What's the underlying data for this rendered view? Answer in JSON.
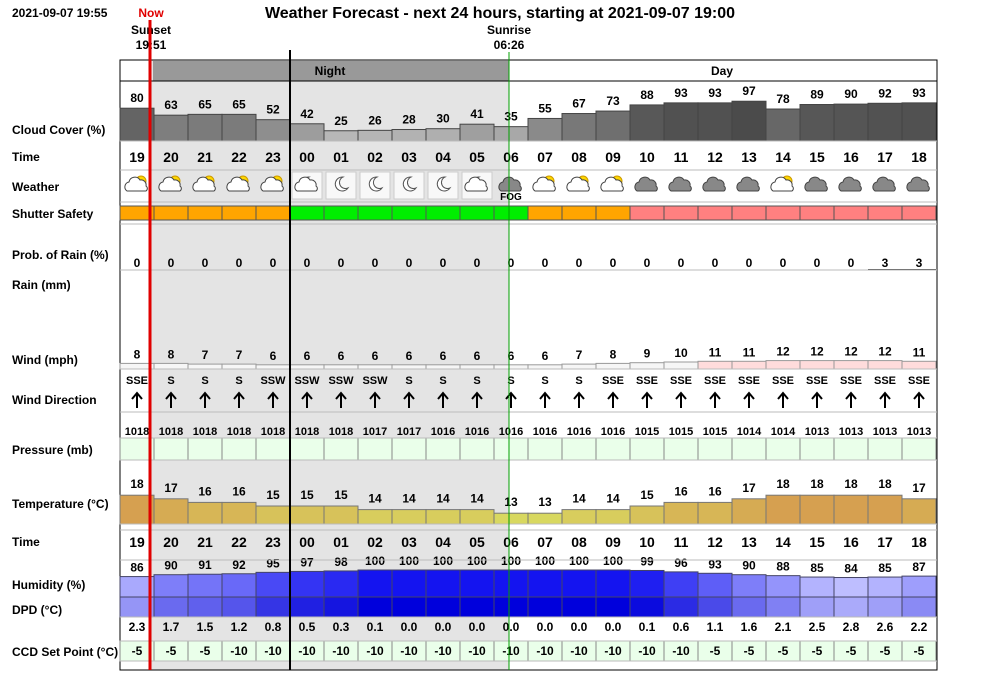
{
  "header": {
    "timestamp": "2021-09-07 19:55",
    "now": "Now",
    "title": "Weather Forecast - next 24 hours, starting at 2021-09-07 19:00",
    "sunset_label": "Sunset",
    "sunset_time": "19:51",
    "sunrise_label": "Sunrise",
    "sunrise_time": "06:26",
    "night": "Night",
    "day": "Day"
  },
  "rows": {
    "cloud_cover": "Cloud Cover (%)",
    "time": "Time",
    "weather": "Weather",
    "shutter_safety": "Shutter Safety",
    "prob_rain": "Prob. of Rain (%)",
    "rain": "Rain (mm)",
    "wind": "Wind (mph)",
    "wind_direction": "Wind Direction",
    "pressure": "Pressure (mb)",
    "temperature": "Temperature (°C)",
    "time2": "Time",
    "humidity": "Humidity (%)",
    "dpd": "DPD (°C)",
    "ccd": "CCD Set Point (°C)"
  },
  "forecast": {
    "time": [
      "19",
      "20",
      "21",
      "22",
      "23",
      "00",
      "01",
      "02",
      "03",
      "04",
      "05",
      "06",
      "07",
      "08",
      "09",
      "10",
      "11",
      "12",
      "13",
      "14",
      "15",
      "16",
      "17",
      "18"
    ],
    "cloud_cover": [
      80,
      63,
      65,
      65,
      52,
      42,
      25,
      26,
      28,
      30,
      41,
      35,
      55,
      67,
      73,
      88,
      93,
      93,
      97,
      78,
      89,
      90,
      92,
      93
    ],
    "weather_labels": [
      null,
      null,
      null,
      null,
      null,
      null,
      null,
      null,
      null,
      null,
      null,
      "FOG",
      null,
      null,
      null,
      null,
      null,
      null,
      null,
      null,
      null,
      null,
      null,
      null
    ],
    "shutter_colors": [
      "#ffa500",
      "#ffa500",
      "#ffa500",
      "#ffa500",
      "#ffa500",
      "#00ee00",
      "#00ee00",
      "#00ee00",
      "#00ee00",
      "#00ee00",
      "#00ee00",
      "#00ee00",
      "#ffa500",
      "#ffa500",
      "#ffa500",
      "#ff8080",
      "#ff8080",
      "#ff8080",
      "#ff8080",
      "#ff8080",
      "#ff8080",
      "#ff8080",
      "#ff8080",
      "#ff8080"
    ],
    "prob_rain": [
      0,
      0,
      0,
      0,
      0,
      0,
      0,
      0,
      0,
      0,
      0,
      0,
      0,
      0,
      0,
      0,
      0,
      0,
      0,
      0,
      0,
      0,
      3,
      3
    ],
    "wind": [
      8,
      8,
      7,
      7,
      6,
      6,
      6,
      6,
      6,
      6,
      6,
      6,
      6,
      7,
      8,
      9,
      10,
      11,
      11,
      12,
      12,
      12,
      12,
      11
    ],
    "wind_direction": [
      "SSE",
      "S",
      "S",
      "S",
      "SSW",
      "SSW",
      "SSW",
      "SSW",
      "S",
      "S",
      "S",
      "S",
      "S",
      "S",
      "SSE",
      "SSE",
      "SSE",
      "SSE",
      "SSE",
      "SSE",
      "SSE",
      "SSE",
      "SSE",
      "SSE"
    ],
    "pressure": [
      1018,
      1018,
      1018,
      1018,
      1018,
      1018,
      1018,
      1017,
      1017,
      1016,
      1016,
      1016,
      1016,
      1016,
      1016,
      1015,
      1015,
      1015,
      1014,
      1014,
      1013,
      1013,
      1013,
      1013
    ],
    "temperature": [
      18,
      17,
      16,
      16,
      15,
      15,
      15,
      14,
      14,
      14,
      14,
      13,
      13,
      14,
      14,
      15,
      16,
      16,
      17,
      18,
      18,
      18,
      18,
      17
    ],
    "humidity": [
      86,
      90,
      91,
      92,
      95,
      97,
      98,
      100,
      100,
      100,
      100,
      100,
      100,
      100,
      100,
      99,
      96,
      93,
      90,
      88,
      85,
      84,
      85,
      87
    ],
    "dpd": [
      "2.3",
      "1.7",
      "1.5",
      "1.2",
      "0.8",
      "0.5",
      "0.3",
      "0.1",
      "0.0",
      "0.0",
      "0.0",
      "0.0",
      "0.0",
      "0.0",
      "0.0",
      "0.1",
      "0.6",
      "1.1",
      "1.6",
      "2.1",
      "2.5",
      "2.8",
      "2.6",
      "2.2"
    ],
    "ccd": [
      -5,
      -5,
      -5,
      -10,
      -10,
      -10,
      -10,
      -10,
      -10,
      -10,
      -10,
      -10,
      -10,
      -10,
      -10,
      -10,
      -10,
      -5,
      -5,
      -5,
      -5,
      -5,
      -5,
      -5
    ]
  }
}
